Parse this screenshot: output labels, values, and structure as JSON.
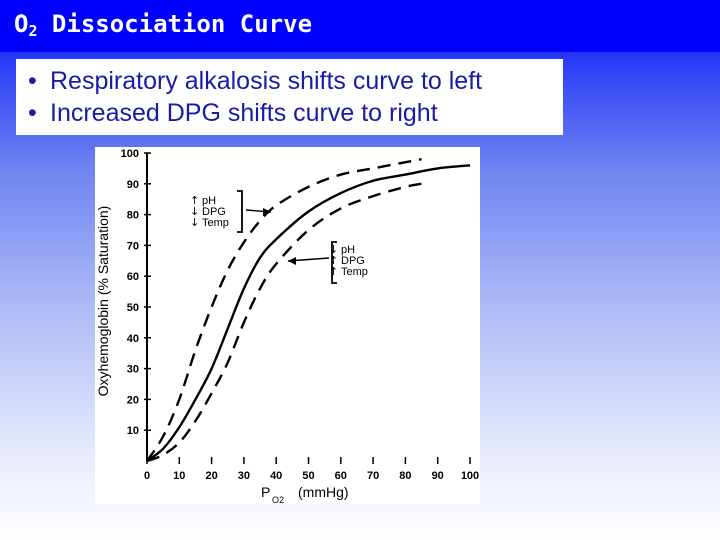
{
  "slide": {
    "title_main": "O",
    "title_sub": "2",
    "title_rest": " Dissociation Curve",
    "bullets": [
      "Respiratory alkalosis shifts curve to left",
      "Increased DPG shifts curve to right"
    ],
    "bullet_glyph": "•"
  },
  "chart_data": {
    "type": "line",
    "xlabel": "P",
    "xlabel_sub": "O2",
    "xlabel_unit": "(mmHg)",
    "ylabel": "Oxyhemoglobin (% Saturation)",
    "xlim": [
      0,
      100
    ],
    "ylim": [
      0,
      100
    ],
    "x_ticks": [
      "0",
      "10",
      "20",
      "30",
      "40",
      "50",
      "60",
      "70",
      "80",
      "90",
      "100"
    ],
    "y_ticks": [
      "10",
      "20",
      "30",
      "40",
      "50",
      "60",
      "70",
      "80",
      "90",
      "100"
    ],
    "series": [
      {
        "style": "dashed",
        "x": [
          0,
          5,
          10,
          15,
          20,
          25,
          30,
          35,
          40,
          50,
          60,
          70,
          80,
          85
        ],
        "y": [
          0,
          8,
          20,
          36,
          50,
          62,
          71,
          78,
          83,
          89,
          93,
          95,
          97,
          98
        ]
      },
      {
        "style": "solid",
        "x": [
          0,
          5,
          10,
          15,
          20,
          25,
          30,
          35,
          40,
          50,
          60,
          70,
          80,
          90,
          100
        ],
        "y": [
          0,
          4,
          11,
          20,
          30,
          43,
          56,
          66,
          72,
          81,
          87,
          91,
          93,
          95,
          96
        ]
      },
      {
        "style": "dashed",
        "x": [
          0,
          5,
          10,
          15,
          20,
          25,
          30,
          35,
          40,
          50,
          60,
          70,
          80,
          85
        ],
        "y": [
          0,
          2,
          6,
          13,
          22,
          32,
          45,
          56,
          64,
          75,
          82,
          86,
          89,
          90
        ]
      }
    ],
    "annotations": [
      {
        "lines": [
          {
            "arrow": "↑",
            "text": "pH"
          },
          {
            "arrow": "↓",
            "text": "DPG"
          },
          {
            "arrow": "↓",
            "text": "Temp"
          }
        ]
      },
      {
        "lines": [
          {
            "arrow": "↓",
            "text": "pH"
          },
          {
            "arrow": "↑",
            "text": "DPG"
          },
          {
            "arrow": "↑",
            "text": "Temp"
          }
        ]
      }
    ]
  }
}
